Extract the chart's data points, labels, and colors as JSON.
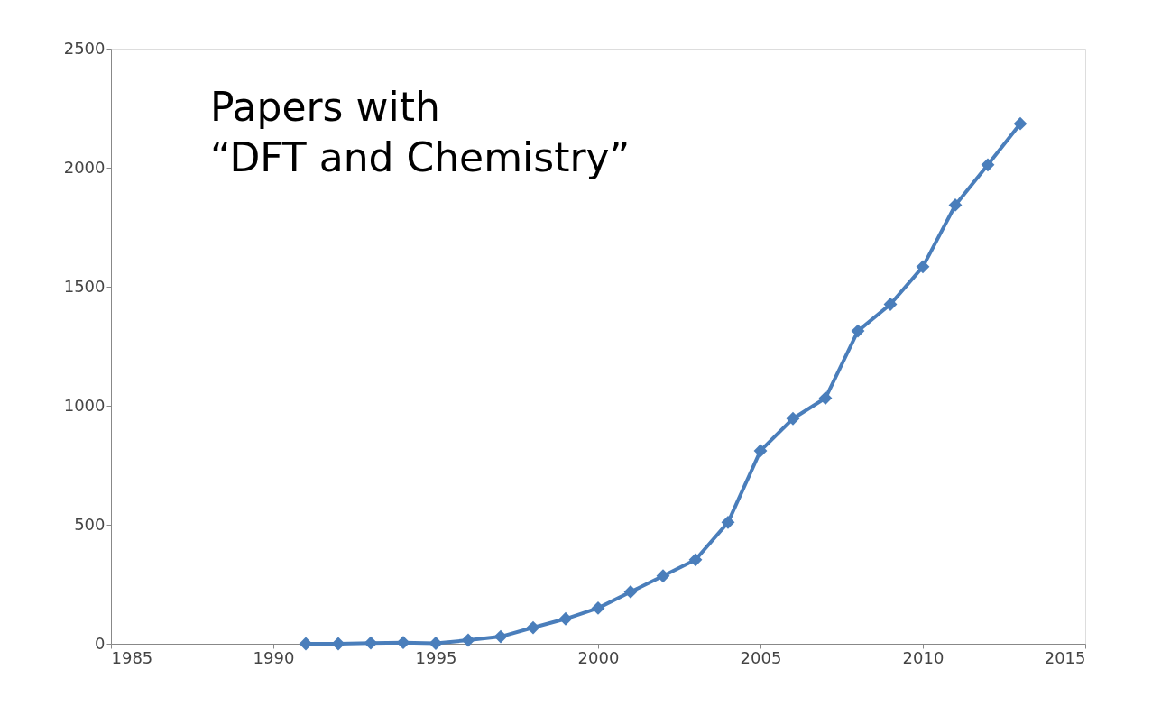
{
  "chart_data": {
    "type": "line",
    "title": "Papers with\n“DFT and Chemistry”",
    "x": [
      1991,
      1992,
      1993,
      1994,
      1995,
      1996,
      1997,
      1998,
      1999,
      2000,
      2001,
      2002,
      2003,
      2004,
      2005,
      2006,
      2007,
      2008,
      2009,
      2010,
      2011,
      2012,
      2013
    ],
    "series": [
      {
        "color": "#4a7ebb",
        "values": [
          0,
          0,
          3,
          5,
          2,
          15,
          30,
          68,
          105,
          150,
          218,
          285,
          353,
          510,
          811,
          946,
          1032,
          1314,
          1426,
          1584,
          1843,
          2012,
          2185
        ]
      }
    ],
    "xlim": [
      1985,
      2015
    ],
    "xticks": [
      1985,
      1990,
      1995,
      2000,
      2005,
      2010,
      2015
    ],
    "ylim": [
      0,
      2500
    ],
    "yticks": [
      0,
      500,
      1000,
      1500,
      2000,
      2500
    ],
    "grid": false,
    "marker": "diamond",
    "line_style": "solid",
    "legend": false
  }
}
